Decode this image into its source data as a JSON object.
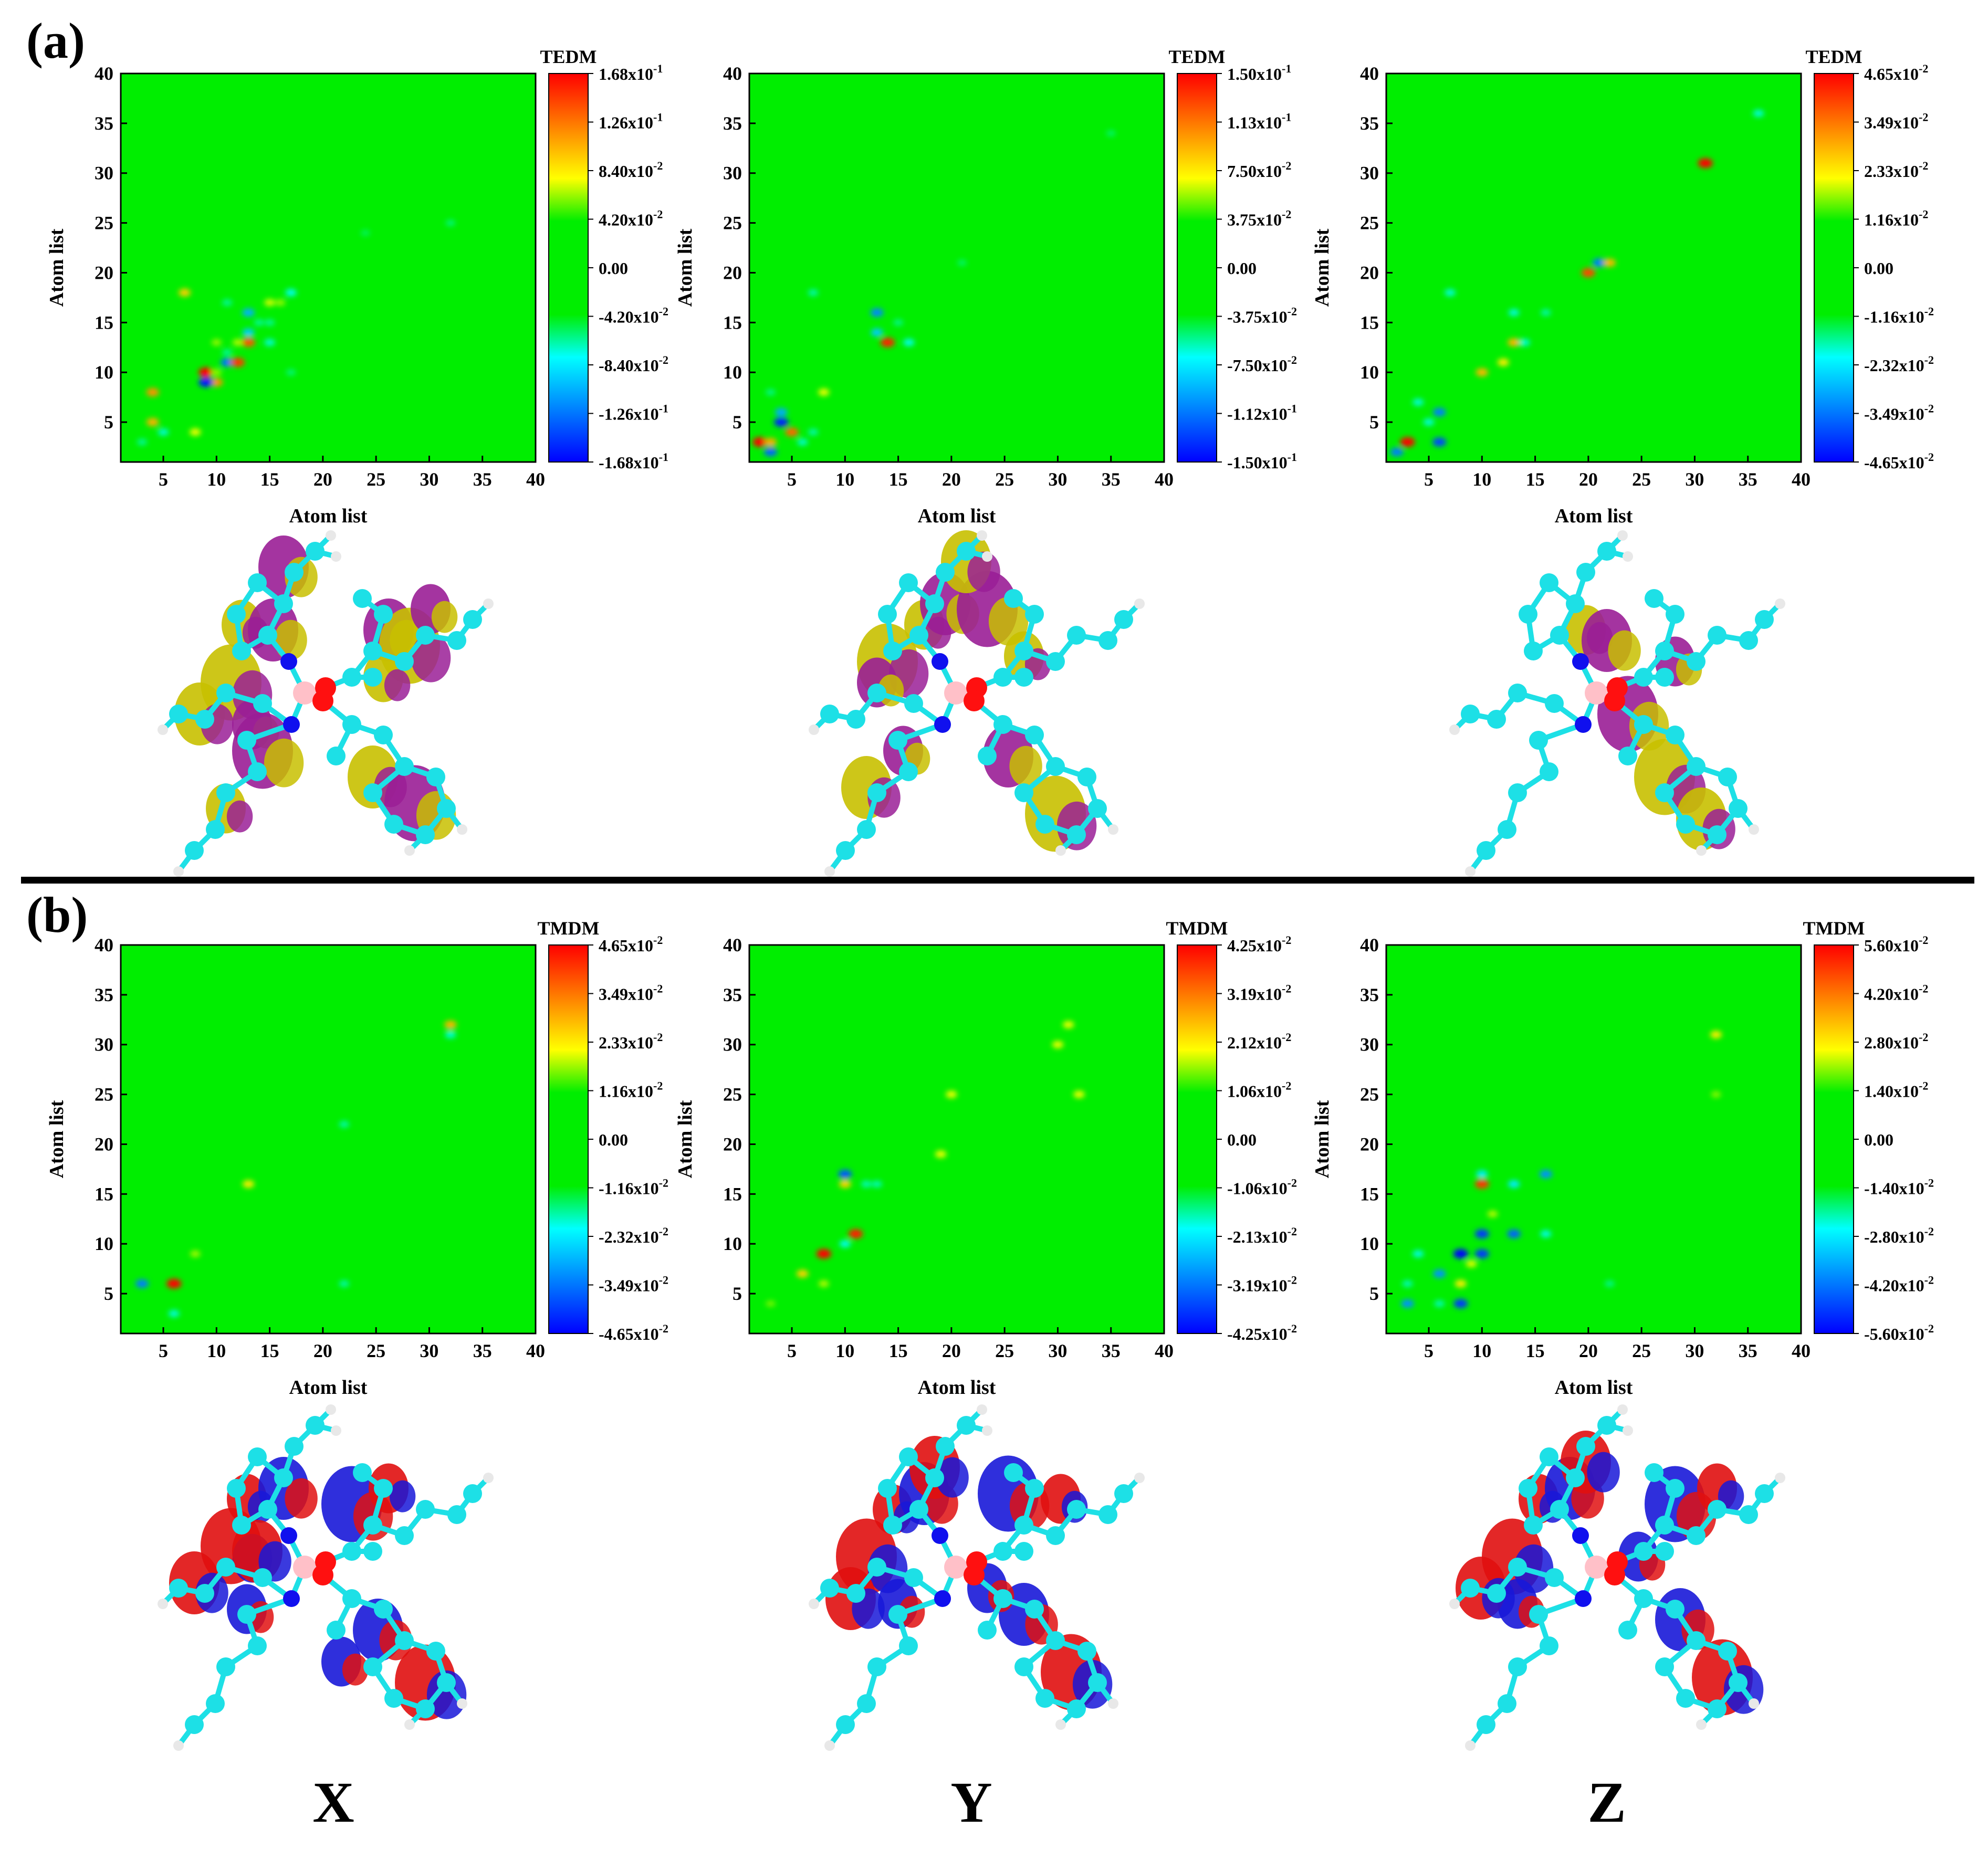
{
  "panel_labels": {
    "a": "(a)",
    "b": "(b)"
  },
  "axis_label": "Atom list",
  "direction_labels": [
    "X",
    "Y",
    "Z"
  ],
  "colors": {
    "background": "#00ee00",
    "scale": [
      "#0000ff",
      "#00ffff",
      "#00ee00",
      "#ffff00",
      "#ff0000"
    ],
    "divider": "#000000",
    "atom_c": "#1de0e6",
    "atom_n": "#1010ee",
    "atom_o": "#ff1010",
    "atom_b": "#ffc0c8",
    "atom_h": "#e8e8e8",
    "iso_a_pos": "#c8c000",
    "iso_a_neg": "#9a1e96",
    "iso_b_pos": "#e01010",
    "iso_b_neg": "#1818d8"
  },
  "chart_data": [
    {
      "type": "heatmap",
      "panel": "a",
      "quantity": "TEDM",
      "direction": "X",
      "xlim": [
        1,
        40
      ],
      "ylim": [
        1,
        40
      ],
      "x_ticks": [
        "5",
        "10",
        "15",
        "20",
        "25",
        "30",
        "35",
        "40"
      ],
      "y_ticks": [
        "5",
        "10",
        "15",
        "20",
        "25",
        "30",
        "35",
        "40"
      ],
      "xlabel": "Atom list",
      "ylabel": "Atom list",
      "colorbar": {
        "title": "TEDM",
        "min": -0.168,
        "max": 0.168,
        "ticks": [
          "1.68x10-1",
          "1.26x10-1",
          "8.40x10-2",
          "4.20x10-2",
          "0.00",
          "-4.20x10-2",
          "-8.40x10-2",
          "-1.26x10-1",
          "-1.68x10-1"
        ]
      },
      "cells": [
        {
          "i": 9,
          "j": 10,
          "v": 0.168
        },
        {
          "i": 10,
          "j": 9,
          "v": 0.12
        },
        {
          "i": 9,
          "j": 9,
          "v": -0.16
        },
        {
          "i": 10,
          "j": 10,
          "v": 0.05
        },
        {
          "i": 11,
          "j": 11,
          "v": -0.13
        },
        {
          "i": 12,
          "j": 11,
          "v": 0.15
        },
        {
          "i": 11,
          "j": 12,
          "v": -0.05
        },
        {
          "i": 13,
          "j": 13,
          "v": 0.14
        },
        {
          "i": 12,
          "j": 13,
          "v": 0.06
        },
        {
          "i": 13,
          "j": 14,
          "v": -0.1
        },
        {
          "i": 13,
          "j": 16,
          "v": -0.11
        },
        {
          "i": 14,
          "j": 15,
          "v": -0.05
        },
        {
          "i": 15,
          "j": 13,
          "v": -0.07
        },
        {
          "i": 17,
          "j": 18,
          "v": -0.08
        },
        {
          "i": 15,
          "j": 17,
          "v": 0.07
        },
        {
          "i": 16,
          "j": 17,
          "v": 0.05
        },
        {
          "i": 7,
          "j": 18,
          "v": 0.1
        },
        {
          "i": 4,
          "j": 8,
          "v": 0.12
        },
        {
          "i": 4,
          "j": 5,
          "v": 0.11
        },
        {
          "i": 5,
          "j": 4,
          "v": -0.07
        },
        {
          "i": 8,
          "j": 4,
          "v": 0.08
        },
        {
          "i": 3,
          "j": 3,
          "v": -0.05
        },
        {
          "i": 11,
          "j": 17,
          "v": -0.05
        },
        {
          "i": 17,
          "j": 10,
          "v": -0.04
        },
        {
          "i": 15,
          "j": 15,
          "v": -0.05
        },
        {
          "i": 10,
          "j": 13,
          "v": 0.05
        },
        {
          "i": 24,
          "j": 24,
          "v": -0.03
        },
        {
          "i": 32,
          "j": 25,
          "v": -0.04
        }
      ]
    },
    {
      "type": "heatmap",
      "panel": "a",
      "quantity": "TEDM",
      "direction": "Y",
      "xlim": [
        1,
        40
      ],
      "ylim": [
        1,
        40
      ],
      "x_ticks": [
        "5",
        "10",
        "15",
        "20",
        "25",
        "30",
        "35",
        "40"
      ],
      "y_ticks": [
        "5",
        "10",
        "15",
        "20",
        "25",
        "30",
        "35",
        "40"
      ],
      "xlabel": "Atom list",
      "ylabel": "Atom list",
      "colorbar": {
        "title": "TEDM",
        "min": -0.15,
        "max": 0.15,
        "ticks": [
          "1.50x10-1",
          "1.13x10-1",
          "7.50x10-2",
          "3.75x10-2",
          "0.00",
          "-3.75x10-2",
          "-7.50x10-2",
          "-1.12x10-1",
          "-1.50x10-1"
        ]
      },
      "cells": [
        {
          "i": 2,
          "j": 3,
          "v": 0.15
        },
        {
          "i": 3,
          "j": 3,
          "v": 0.1
        },
        {
          "i": 3,
          "j": 2,
          "v": -0.12
        },
        {
          "i": 4,
          "j": 5,
          "v": -0.14
        },
        {
          "i": 4,
          "j": 6,
          "v": -0.1
        },
        {
          "i": 5,
          "j": 4,
          "v": 0.12
        },
        {
          "i": 6,
          "j": 3,
          "v": -0.06
        },
        {
          "i": 7,
          "j": 4,
          "v": -0.05
        },
        {
          "i": 8,
          "j": 8,
          "v": 0.07
        },
        {
          "i": 13,
          "j": 16,
          "v": -0.11
        },
        {
          "i": 13,
          "j": 14,
          "v": -0.09
        },
        {
          "i": 14,
          "j": 13,
          "v": 0.14
        },
        {
          "i": 15,
          "j": 15,
          "v": -0.04
        },
        {
          "i": 16,
          "j": 13,
          "v": -0.07
        },
        {
          "i": 7,
          "j": 18,
          "v": -0.05
        },
        {
          "i": 3,
          "j": 8,
          "v": -0.04
        },
        {
          "i": 21,
          "j": 21,
          "v": -0.03
        },
        {
          "i": 35,
          "j": 34,
          "v": -0.03
        }
      ]
    },
    {
      "type": "heatmap",
      "panel": "a",
      "quantity": "TEDM",
      "direction": "Z",
      "xlim": [
        1,
        40
      ],
      "ylim": [
        1,
        40
      ],
      "x_ticks": [
        "5",
        "10",
        "15",
        "20",
        "25",
        "30",
        "35",
        "40"
      ],
      "y_ticks": [
        "5",
        "10",
        "15",
        "20",
        "25",
        "30",
        "35",
        "40"
      ],
      "xlabel": "Atom list",
      "ylabel": "Atom list",
      "colorbar": {
        "title": "TEDM",
        "min": -0.0465,
        "max": 0.0465,
        "ticks": [
          "4.65x10-2",
          "3.49x10-2",
          "2.33x10-2",
          "1.16x10-2",
          "0.00",
          "-1.16x10-2",
          "-2.32x10-2",
          "-3.49x10-2",
          "-4.65x10-2"
        ]
      },
      "cells": [
        {
          "i": 3,
          "j": 3,
          "v": 0.0465
        },
        {
          "i": 2,
          "j": 2,
          "v": -0.035
        },
        {
          "i": 6,
          "j": 3,
          "v": -0.04
        },
        {
          "i": 6,
          "j": 6,
          "v": -0.035
        },
        {
          "i": 5,
          "j": 5,
          "v": -0.02
        },
        {
          "i": 7,
          "j": 18,
          "v": -0.02
        },
        {
          "i": 10,
          "j": 10,
          "v": 0.03
        },
        {
          "i": 12,
          "j": 11,
          "v": 0.025
        },
        {
          "i": 13,
          "j": 13,
          "v": 0.03
        },
        {
          "i": 13,
          "j": 16,
          "v": -0.02
        },
        {
          "i": 14,
          "j": 13,
          "v": -0.02
        },
        {
          "i": 20,
          "j": 20,
          "v": 0.04
        },
        {
          "i": 21,
          "j": 21,
          "v": -0.035
        },
        {
          "i": 22,
          "j": 21,
          "v": 0.03
        },
        {
          "i": 31,
          "j": 31,
          "v": 0.0465
        },
        {
          "i": 36,
          "j": 36,
          "v": -0.02
        },
        {
          "i": 4,
          "j": 7,
          "v": -0.02
        },
        {
          "i": 16,
          "j": 16,
          "v": -0.015
        }
      ]
    },
    {
      "type": "heatmap",
      "panel": "b",
      "quantity": "TMDM",
      "direction": "X",
      "xlim": [
        1,
        40
      ],
      "ylim": [
        1,
        40
      ],
      "x_ticks": [
        "5",
        "10",
        "15",
        "20",
        "25",
        "30",
        "35",
        "40"
      ],
      "y_ticks": [
        "5",
        "10",
        "15",
        "20",
        "25",
        "30",
        "35",
        "40"
      ],
      "xlabel": "Atom list",
      "ylabel": "Atom list",
      "colorbar": {
        "title": "TMDM",
        "min": -0.0465,
        "max": 0.0465,
        "ticks": [
          "4.65x10-2",
          "3.49x10-2",
          "2.33x10-2",
          "1.16x10-2",
          "0.00",
          "-1.16x10-2",
          "-2.32x10-2",
          "-3.49x10-2",
          "-4.65x10-2"
        ]
      },
      "cells": [
        {
          "i": 6,
          "j": 6,
          "v": 0.0465
        },
        {
          "i": 3,
          "j": 6,
          "v": -0.035
        },
        {
          "i": 6,
          "j": 3,
          "v": -0.02
        },
        {
          "i": 13,
          "j": 16,
          "v": 0.025
        },
        {
          "i": 32,
          "j": 32,
          "v": 0.03
        },
        {
          "i": 32,
          "j": 31,
          "v": -0.02
        },
        {
          "i": 22,
          "j": 22,
          "v": -0.015
        },
        {
          "i": 22,
          "j": 6,
          "v": -0.015
        },
        {
          "i": 8,
          "j": 9,
          "v": 0.015
        }
      ]
    },
    {
      "type": "heatmap",
      "panel": "b",
      "quantity": "TMDM",
      "direction": "Y",
      "xlim": [
        1,
        40
      ],
      "ylim": [
        1,
        40
      ],
      "x_ticks": [
        "5",
        "10",
        "15",
        "20",
        "25",
        "30",
        "35",
        "40"
      ],
      "y_ticks": [
        "5",
        "10",
        "15",
        "20",
        "25",
        "30",
        "35",
        "40"
      ],
      "xlabel": "Atom list",
      "ylabel": "Atom list",
      "colorbar": {
        "title": "TMDM",
        "min": -0.0425,
        "max": 0.0425,
        "ticks": [
          "4.25x10-2",
          "3.19x10-2",
          "2.12x10-2",
          "1.06x10-2",
          "0.00",
          "-1.06x10-2",
          "-2.13x10-2",
          "-3.19x10-2",
          "-4.25x10-2"
        ]
      },
      "cells": [
        {
          "i": 8,
          "j": 9,
          "v": 0.0425
        },
        {
          "i": 11,
          "j": 11,
          "v": 0.04
        },
        {
          "i": 10,
          "j": 10,
          "v": -0.02
        },
        {
          "i": 10,
          "j": 17,
          "v": -0.035
        },
        {
          "i": 10,
          "j": 16,
          "v": 0.025
        },
        {
          "i": 12,
          "j": 16,
          "v": -0.015
        },
        {
          "i": 13,
          "j": 16,
          "v": -0.015
        },
        {
          "i": 6,
          "j": 7,
          "v": 0.025
        },
        {
          "i": 8,
          "j": 6,
          "v": 0.015
        },
        {
          "i": 19,
          "j": 19,
          "v": 0.02
        },
        {
          "i": 20,
          "j": 25,
          "v": 0.02
        },
        {
          "i": 30,
          "j": 30,
          "v": 0.02
        },
        {
          "i": 31,
          "j": 32,
          "v": 0.02
        },
        {
          "i": 32,
          "j": 25,
          "v": 0.02
        },
        {
          "i": 3,
          "j": 4,
          "v": 0.01
        }
      ]
    },
    {
      "type": "heatmap",
      "panel": "b",
      "quantity": "TMDM",
      "direction": "Z",
      "xlim": [
        1,
        40
      ],
      "ylim": [
        1,
        40
      ],
      "x_ticks": [
        "5",
        "10",
        "15",
        "20",
        "25",
        "30",
        "35",
        "40"
      ],
      "y_ticks": [
        "5",
        "10",
        "15",
        "20",
        "25",
        "30",
        "35",
        "40"
      ],
      "xlabel": "Atom list",
      "ylabel": "Atom list",
      "colorbar": {
        "title": "TMDM",
        "min": -0.056,
        "max": 0.056,
        "ticks": [
          "5.60x10-2",
          "4.20x10-2",
          "2.80x10-2",
          "1.40x10-2",
          "0.00",
          "-1.40x10-2",
          "-2.80x10-2",
          "-4.20x10-2",
          "-5.60x10-2"
        ]
      },
      "cells": [
        {
          "i": 8,
          "j": 9,
          "v": -0.056
        },
        {
          "i": 10,
          "j": 9,
          "v": -0.05
        },
        {
          "i": 10,
          "j": 11,
          "v": -0.05
        },
        {
          "i": 8,
          "j": 4,
          "v": -0.05
        },
        {
          "i": 13,
          "j": 11,
          "v": -0.045
        },
        {
          "i": 10,
          "j": 16,
          "v": 0.05
        },
        {
          "i": 10,
          "j": 17,
          "v": -0.03
        },
        {
          "i": 13,
          "j": 16,
          "v": -0.03
        },
        {
          "i": 16,
          "j": 17,
          "v": -0.04
        },
        {
          "i": 16,
          "j": 11,
          "v": -0.025
        },
        {
          "i": 6,
          "j": 7,
          "v": -0.04
        },
        {
          "i": 3,
          "j": 4,
          "v": -0.04
        },
        {
          "i": 3,
          "j": 6,
          "v": -0.02
        },
        {
          "i": 4,
          "j": 9,
          "v": -0.025
        },
        {
          "i": 8,
          "j": 6,
          "v": 0.03
        },
        {
          "i": 11,
          "j": 13,
          "v": 0.02
        },
        {
          "i": 32,
          "j": 31,
          "v": 0.03
        },
        {
          "i": 32,
          "j": 25,
          "v": 0.015
        },
        {
          "i": 22,
          "j": 6,
          "v": -0.015
        },
        {
          "i": 6,
          "j": 4,
          "v": -0.02
        },
        {
          "i": 9,
          "j": 8,
          "v": 0.025
        }
      ]
    }
  ]
}
